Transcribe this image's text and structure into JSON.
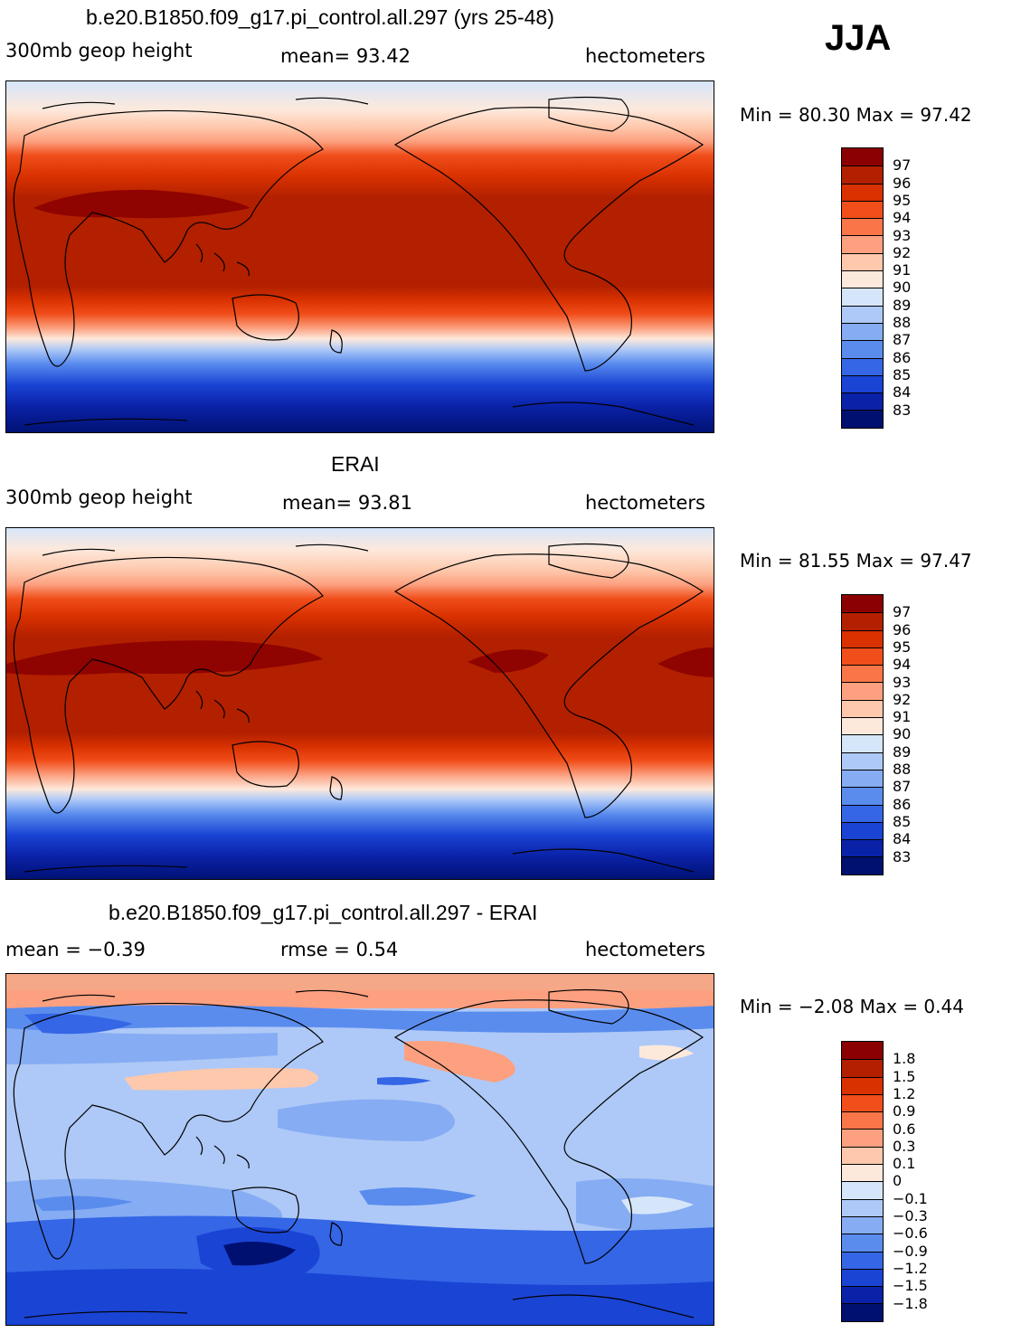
{
  "season": "JJA",
  "panels": [
    {
      "title": "b.e20.B1850.f09_g17.pi_control.all.297 (yrs 25-48)",
      "left_label": "300mb geop height",
      "center_label": "mean=   93.42",
      "units": "hectometers",
      "minmax": "Min =   80.30  Max =   97.42",
      "levels": [
        "97",
        "96",
        "95",
        "94",
        "93",
        "92",
        "91",
        "90",
        "89",
        "88",
        "87",
        "86",
        "85",
        "84",
        "83"
      ],
      "colors": [
        "#8b0000",
        "#b22000",
        "#d93100",
        "#f04e1a",
        "#fa7648",
        "#fca080",
        "#fec8ac",
        "#fde9dc",
        "#d6e6fa",
        "#aec9f7",
        "#86acf3",
        "#5a8cee",
        "#3466e6",
        "#1a44d4",
        "#0a22a8",
        "#001070"
      ]
    },
    {
      "title": "ERAI",
      "left_label": "300mb geop height",
      "center_label": "mean=   93.81",
      "units": "hectometers",
      "minmax": "Min =   81.55  Max =   97.47",
      "levels": [
        "97",
        "96",
        "95",
        "94",
        "93",
        "92",
        "91",
        "90",
        "89",
        "88",
        "87",
        "86",
        "85",
        "84",
        "83"
      ],
      "colors": [
        "#8b0000",
        "#b22000",
        "#d93100",
        "#f04e1a",
        "#fa7648",
        "#fca080",
        "#fec8ac",
        "#fde9dc",
        "#d6e6fa",
        "#aec9f7",
        "#86acf3",
        "#5a8cee",
        "#3466e6",
        "#1a44d4",
        "#0a22a8",
        "#001070"
      ]
    },
    {
      "title": "b.e20.B1850.f09_g17.pi_control.all.297 - ERAI",
      "left_label": "mean =   −0.39",
      "center_label": "rmse =     0.54",
      "units": "hectometers",
      "minmax": "Min =   −2.08  Max =     0.44",
      "levels": [
        "1.8",
        "1.5",
        "1.2",
        "0.9",
        "0.6",
        "0.3",
        "0.1",
        "0",
        "−0.1",
        "−0.3",
        "−0.6",
        "−0.9",
        "−1.2",
        "−1.5",
        "−1.8"
      ],
      "colors": [
        "#8b0000",
        "#b22000",
        "#d93100",
        "#f04e1a",
        "#fa7648",
        "#fca080",
        "#fec8ac",
        "#fde9dc",
        "#d6e6fa",
        "#aec9f7",
        "#86acf3",
        "#5a8cee",
        "#3466e6",
        "#1a44d4",
        "#0a22a8",
        "#001070"
      ]
    }
  ]
}
